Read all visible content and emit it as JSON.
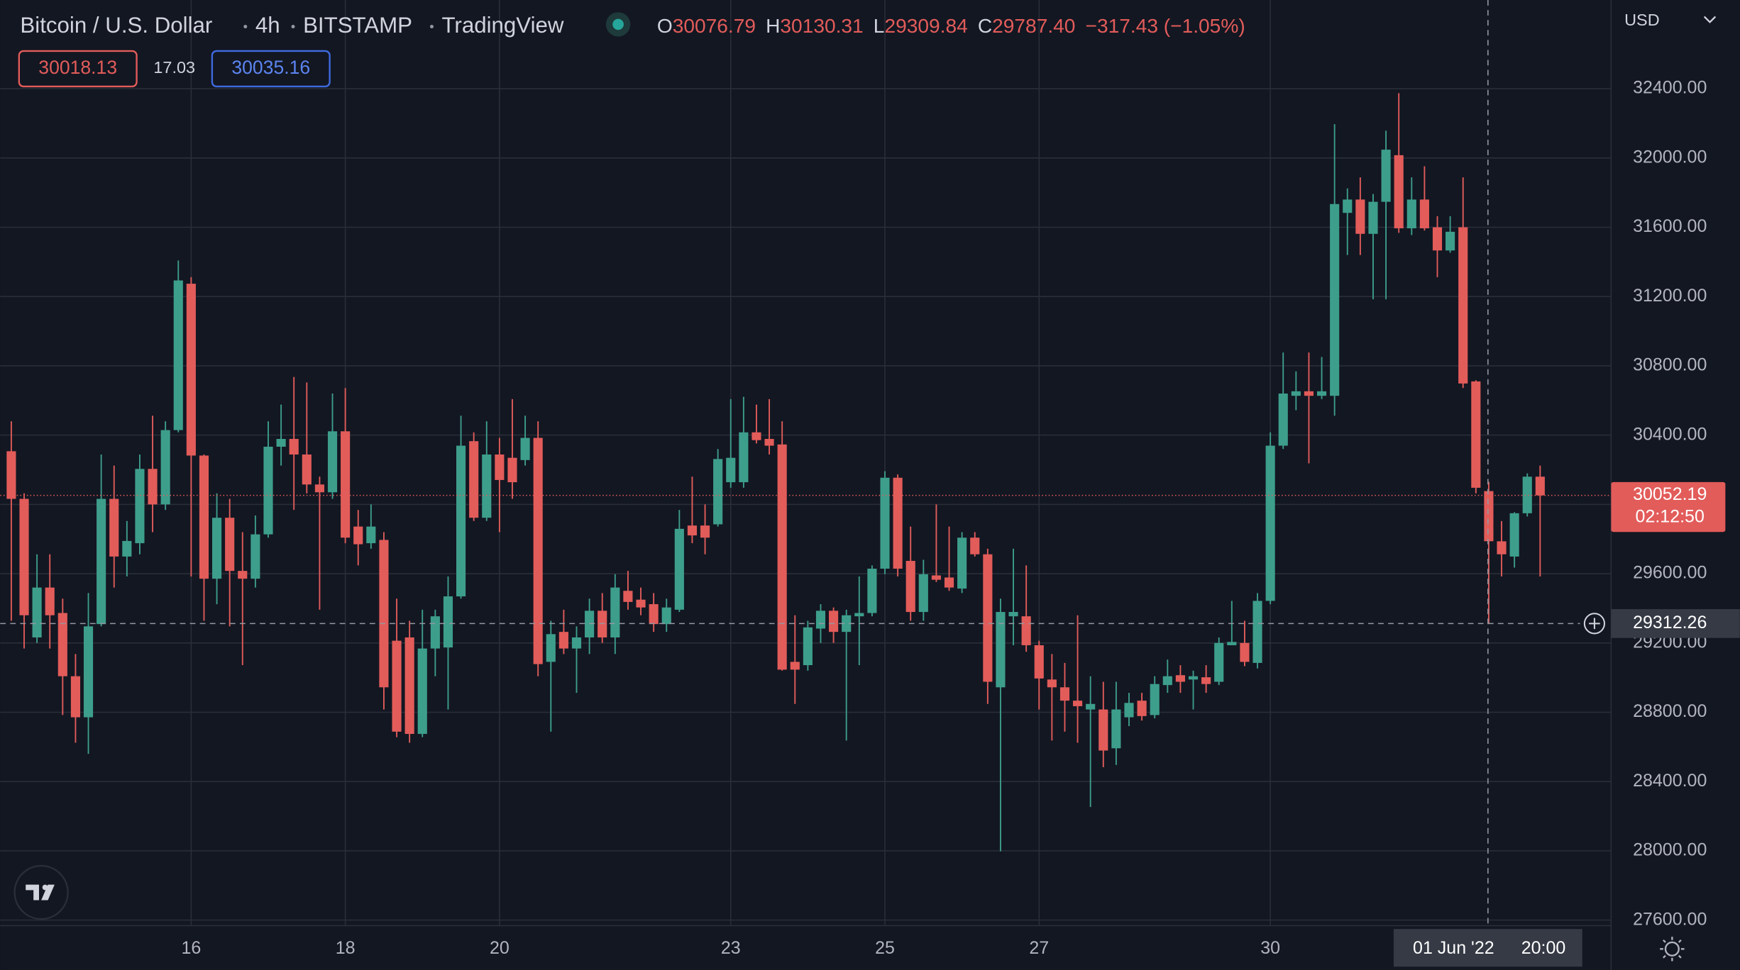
{
  "chart_data": {
    "type": "candlestick",
    "title": "Bitcoin / U.S. Dollar",
    "interval": "4h",
    "exchange": "BITSTAMP",
    "source": "TradingView",
    "ohlc_legend": [
      {
        "label": "O",
        "value": "30076.79"
      },
      {
        "label": "H",
        "value": "30130.31"
      },
      {
        "label": "L",
        "value": "29309.84"
      },
      {
        "label": "C",
        "value": "29787.40"
      }
    ],
    "change": "−317.43 (−1.05%)",
    "bid": "30018.13",
    "spread": "17.03",
    "ask": "30035.16",
    "currency": "USD",
    "up_color": "#3d9e8c",
    "down_color": "#e25c5a",
    "grid": true,
    "ylim": [
      27568,
      32912
    ],
    "yticks": [
      {
        "value": 27600,
        "label": "27600.00"
      },
      {
        "value": 28000,
        "label": "28000.00"
      },
      {
        "value": 28400,
        "label": "28400.00"
      },
      {
        "value": 28800,
        "label": "28800.00"
      },
      {
        "value": 29200,
        "label": "29200.00"
      },
      {
        "value": 29600,
        "label": "29600.00"
      },
      {
        "value": 30000,
        "label": "30000.00"
      },
      {
        "value": 30400,
        "label": "30400.00"
      },
      {
        "value": 30800,
        "label": "30800.00"
      },
      {
        "value": 31200,
        "label": "31200.00"
      },
      {
        "value": 31600,
        "label": "31600.00"
      },
      {
        "value": 32000,
        "label": "32000.00"
      },
      {
        "value": 32400,
        "label": "32400.00"
      }
    ],
    "last_price": 30052.19,
    "countdown": "02:12:50",
    "crosshair": {
      "price": 29312.26,
      "date": "01 Jun '22",
      "time": "20:00"
    },
    "categories": [
      null,
      null,
      null,
      null,
      null,
      null,
      null,
      null,
      null,
      null,
      null,
      null,
      null,
      null,
      "16",
      null,
      null,
      null,
      null,
      null,
      null,
      null,
      null,
      null,
      null,
      null,
      "18",
      null,
      null,
      null,
      null,
      null,
      null,
      null,
      null,
      null,
      null,
      null,
      "20",
      null,
      null,
      null,
      null,
      null,
      null,
      null,
      null,
      null,
      null,
      null,
      null,
      null,
      null,
      null,
      null,
      null,
      "23",
      null,
      null,
      null,
      null,
      null,
      null,
      null,
      null,
      null,
      null,
      null,
      "25",
      null,
      null,
      null,
      null,
      null,
      null,
      null,
      null,
      null,
      null,
      null,
      "27",
      null,
      null,
      null,
      null,
      null,
      null,
      null,
      null,
      null,
      null,
      null,
      null,
      null,
      null,
      null,
      null,
      null,
      "30",
      null,
      null,
      null,
      null,
      null,
      null,
      null,
      null,
      null,
      null,
      null,
      null,
      null,
      null,
      null,
      null,
      null,
      null,
      null,
      null,
      null
    ],
    "open": [
      30307,
      30032,
      29232,
      29520,
      29373,
      29008,
      28771,
      29309,
      30032,
      29699,
      29776,
      30205,
      30000,
      30429,
      31274,
      30282,
      29571,
      29923,
      29616,
      29571,
      29827,
      30333,
      30378,
      30288,
      30115,
      30070,
      30422,
      29872,
      29776,
      29795,
      29213,
      29232,
      28675,
      29168,
      29174,
      29469,
      30365,
      29923,
      30288,
      30269,
      30256,
      30384,
      29091,
      29264,
      29168,
      29232,
      29386,
      29232,
      29501,
      29450,
      29424,
      29309,
      29392,
      29878,
      29878,
      29885,
      30128,
      30128,
      30416,
      30378,
      30346,
      29091,
      29072,
      29283,
      29386,
      29264,
      29354,
      29373,
      29629,
      30154,
      29674,
      29379,
      29590,
      29578,
      29514,
      29808,
      29712,
      28944,
      29354,
      29354,
      29187,
      28989,
      28944,
      28867,
      28816,
      28816,
      28592,
      28771,
      28867,
      28784,
      28957,
      29014,
      28989,
      29002,
      28976,
      29187,
      29200,
      29085,
      29443,
      30339,
      30627,
      30653,
      30627,
      30627,
      31683,
      31760,
      31562,
      31747,
      32016,
      31594,
      31760,
      31600,
      31466,
      31600,
      30710,
      30076.79,
      29787,
      29699,
      29949,
      30160
    ],
    "high": [
      30480,
      30064,
      29712,
      29712,
      29456,
      29136,
      29488,
      30288,
      30224,
      29904,
      30288,
      30512,
      30480,
      31408,
      31312,
      30288,
      30064,
      30032,
      29840,
      29936,
      30480,
      30576,
      30736,
      30704,
      30160,
      30640,
      30672,
      29968,
      30000,
      29840,
      29456,
      29328,
      29392,
      29392,
      29584,
      30512,
      30416,
      30480,
      30384,
      30608,
      30512,
      30480,
      29328,
      29392,
      29296,
      29456,
      29488,
      29597,
      29616,
      29520,
      29488,
      29456,
      29968,
      30160,
      30000,
      30320,
      30608,
      30621,
      30576,
      30608,
      30480,
      29360,
      29328,
      29424,
      29405,
      29392,
      29584,
      29648,
      30192,
      30173,
      29872,
      29680,
      30000,
      29872,
      29840,
      29840,
      29744,
      29456,
      29744,
      29648,
      29213,
      29136,
      29085,
      29360,
      29008,
      28976,
      28976,
      28912,
      28912,
      29008,
      29104,
      29072,
      29040,
      29072,
      29232,
      29443,
      29328,
      29488,
      30416,
      30877,
      30768,
      30877,
      30851,
      32195,
      31824,
      31888,
      31792,
      32157,
      32374,
      31888,
      31952,
      31664,
      31664,
      31888,
      30717,
      30130.31,
      29904,
      29955,
      30179,
      30224
    ],
    "low": [
      29328,
      29168,
      29200,
      29168,
      28784,
      28624,
      28560,
      29296,
      29520,
      29584,
      29712,
      29840,
      29968,
      30416,
      29584,
      29328,
      29424,
      29296,
      29072,
      29520,
      29808,
      30224,
      29968,
      30064,
      29392,
      30032,
      29776,
      29648,
      29744,
      28816,
      28656,
      28624,
      28656,
      29008,
      28816,
      29456,
      29904,
      29904,
      29840,
      30032,
      30224,
      29008,
      28688,
      29136,
      28912,
      29136,
      29200,
      29136,
      29392,
      29360,
      29264,
      29264,
      29379,
      29776,
      29712,
      29872,
      30096,
      30096,
      30352,
      30288,
      29040,
      28848,
      29040,
      29200,
      29200,
      28637,
      29072,
      29354,
      29597,
      29584,
      29328,
      29328,
      29552,
      29501,
      29488,
      29699,
      28848,
      27997,
      29187,
      29149,
      28816,
      28637,
      28688,
      28624,
      28253,
      28483,
      28496,
      28720,
      28752,
      28765,
      28912,
      28912,
      28816,
      28912,
      28957,
      29187,
      29066,
      29053,
      29424,
      30320,
      30544,
      30237,
      30608,
      30512,
      31440,
      31440,
      31184,
      31184,
      31568,
      31555,
      31581,
      31312,
      31453,
      30672,
      30064,
      29309.84,
      29584,
      29635,
      29930,
      29584
    ],
    "close": [
      30032,
      29360,
      29520,
      29360,
      29008,
      28771,
      29296,
      30032,
      29699,
      29789,
      30205,
      30000,
      30429,
      31293,
      30282,
      29571,
      29923,
      29616,
      29571,
      29827,
      30333,
      30378,
      30288,
      30115,
      30070,
      30422,
      29808,
      29770,
      29872,
      28944,
      28688,
      28675,
      29168,
      29354,
      29469,
      30339,
      29923,
      30288,
      30141,
      30128,
      30384,
      29078,
      29251,
      29168,
      29232,
      29386,
      29232,
      29520,
      29437,
      29405,
      29309,
      29405,
      29859,
      29821,
      29808,
      30262,
      30269,
      30416,
      30371,
      30339,
      29046,
      29046,
      29290,
      29386,
      29264,
      29360,
      29373,
      29629,
      30154,
      29629,
      29379,
      29597,
      29565,
      29520,
      29808,
      29712,
      28976,
      29379,
      29379,
      29187,
      28995,
      28944,
      28867,
      28835,
      28848,
      28579,
      28816,
      28854,
      28778,
      28963,
      29008,
      28976,
      29008,
      28963,
      29200,
      29206,
      29091,
      29443,
      30339,
      30640,
      30653,
      30627,
      30653,
      31734,
      31760,
      31562,
      31747,
      32048,
      31594,
      31760,
      31594,
      31466,
      31574,
      30698,
      30096,
      29787.4,
      29712,
      29949,
      30160,
      30052.19
    ]
  }
}
